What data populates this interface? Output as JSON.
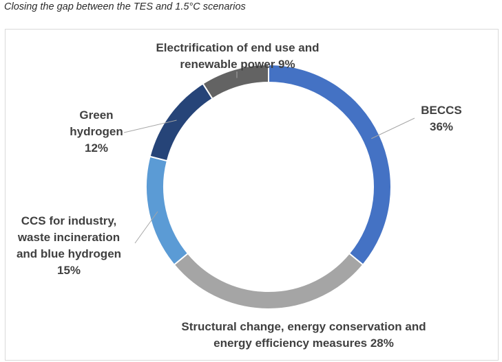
{
  "caption": "Closing the gap between the TES and 1.5°C scenarios",
  "chart_data": {
    "type": "pie",
    "variant": "donut",
    "title": "",
    "slices": [
      {
        "label": "BECCS",
        "value": 36,
        "color": "#4472c4"
      },
      {
        "label": "Structural change, energy conservation and energy efficiency measures",
        "value": 28,
        "color": "#a5a5a5"
      },
      {
        "label": "CCS for industry, waste incineration and blue hydrogen",
        "value": 15,
        "color": "#5b9bd5"
      },
      {
        "label": "Green hydrogen",
        "value": 12,
        "color": "#264478"
      },
      {
        "label": "Electrification of end use and renewable power",
        "value": 9,
        "color": "#636363"
      }
    ],
    "labels": {
      "beccs": [
        "BECCS",
        "36%"
      ],
      "structural": [
        "Structural change, energy conservation and",
        "energy efficiency measures 28%"
      ],
      "ccs": [
        "CCS for industry,",
        "waste incineration",
        "and blue hydrogen",
        "15%"
      ],
      "green": [
        "Green",
        "hydrogen",
        "12%"
      ],
      "electrification": [
        "Electrification of end use and",
        "renewable power 9%"
      ]
    }
  }
}
